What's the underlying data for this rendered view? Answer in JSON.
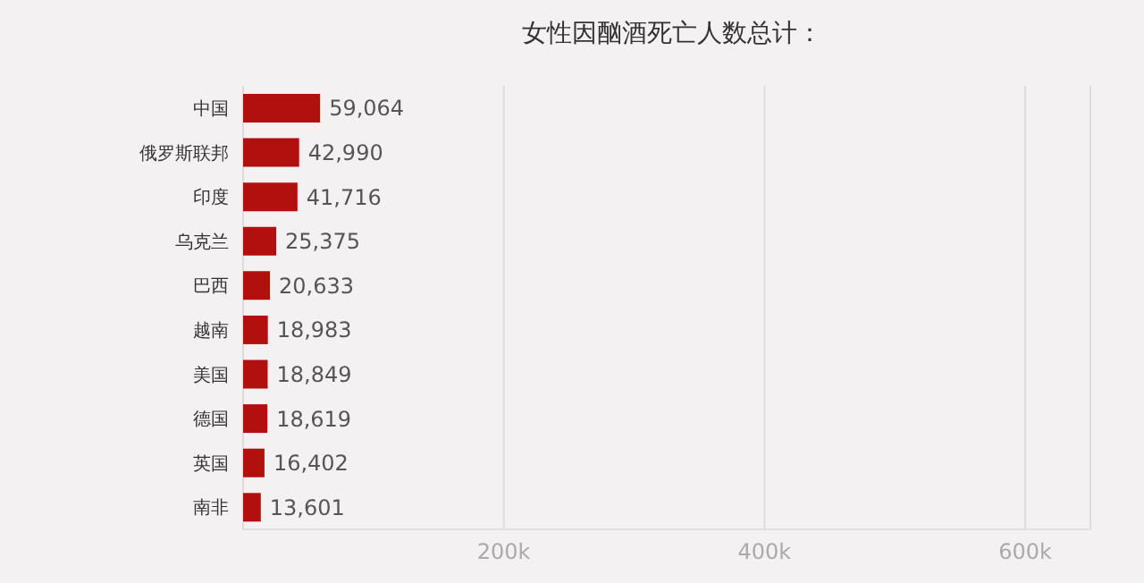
{
  "chart_data": {
    "type": "bar",
    "orientation": "horizontal",
    "title": "女性因酗酒死亡人数总计：",
    "categories": [
      "中国",
      "俄罗斯联邦",
      "印度",
      "乌克兰",
      "巴西",
      "越南",
      "美国",
      "德国",
      "英国",
      "南非"
    ],
    "values": [
      59064,
      42990,
      41716,
      25375,
      20633,
      18983,
      18849,
      18619,
      16402,
      13601
    ],
    "color": "#b20f0f",
    "value_labels": [
      "59,064",
      "42,990",
      "41,716",
      "25,375",
      "20,633",
      "18,983",
      "18,849",
      "18,619",
      "16,402",
      "13,601"
    ],
    "xlim": [
      0,
      650000
    ],
    "xticks": [
      {
        "value": 0,
        "label": null
      },
      {
        "value": 200000,
        "label": "200k"
      },
      {
        "value": 400000,
        "label": "400k"
      },
      {
        "value": 600000,
        "label": "600k"
      }
    ],
    "grid": "x"
  }
}
